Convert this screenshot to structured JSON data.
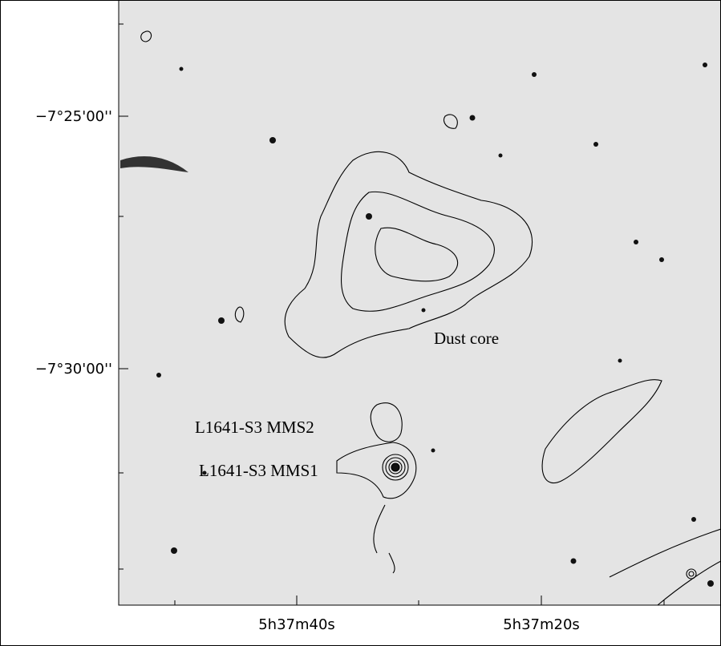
{
  "axes": {
    "y_tick_labels": [
      "−7°25'00''",
      "−7°30'00''"
    ],
    "x_tick_labels": [
      "5h37m40s",
      "5h37m20s"
    ]
  },
  "annotations": [
    "Dust core",
    "L1641-S3 MMS2",
    "L1641-S3 MMS1"
  ]
}
